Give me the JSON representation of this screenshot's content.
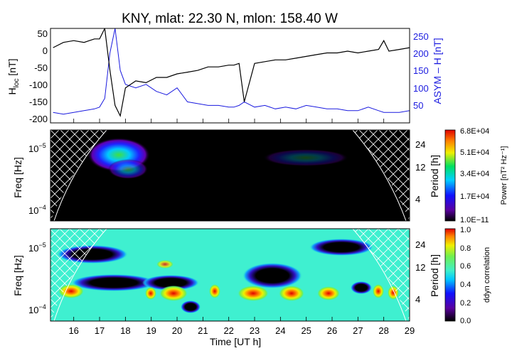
{
  "figure": {
    "title": "KNY, mlat:   22.30 N, mlon:  158.40 W",
    "x_axis_label": "Time [UT h]",
    "x_tick_labels": [
      "16",
      "17",
      "18",
      "19",
      "20",
      "21",
      "22",
      "23",
      "24",
      "25",
      "26",
      "27",
      "28",
      "29"
    ]
  },
  "panel1": {
    "left_label": "H",
    "left_label_sub": "loc",
    "left_label_unit": " [nT]",
    "right_label": "ASYM – H [nT]",
    "left_ticks": [
      "50",
      "0",
      "-50",
      "-100",
      "-150",
      "-200"
    ],
    "right_ticks": [
      "250",
      "200",
      "150",
      "100",
      "50"
    ]
  },
  "panel2": {
    "ylabel": "Freq [Hz]",
    "y_ticks_base": [
      "10",
      "10"
    ],
    "y_ticks_exp": [
      "−5",
      "−4"
    ],
    "period_label": "Period [h]",
    "period_ticks": [
      "24",
      "12",
      "4"
    ],
    "colorbar_label": "Power [nT² Hz⁻¹]",
    "colorbar_ticks": [
      "6.8E+04",
      "5.1E+04",
      "3.4E+04",
      "1.7E+04",
      "1.0E−11"
    ]
  },
  "panel3": {
    "ylabel": "Freq [Hz]",
    "y_ticks_base": [
      "10",
      "10"
    ],
    "y_ticks_exp": [
      "−5",
      "−4"
    ],
    "period_label": "Period [h]",
    "period_ticks": [
      "24",
      "12",
      "4"
    ],
    "colorbar_label": "ddyn correlation",
    "colorbar_ticks": [
      "1.0",
      "0.8",
      "0.6",
      "0.4",
      "0.2",
      "0.0"
    ]
  },
  "colors": {
    "hloc_line": "#000000",
    "asym_line": "#1a1adf",
    "power_background": "#000000",
    "correlation_background": "#3ff0d0"
  },
  "chart_data": [
    {
      "type": "line",
      "x": [
        15.2,
        15.6,
        16.0,
        16.4,
        16.8,
        17.0,
        17.2,
        17.4,
        17.6,
        17.8,
        18.0,
        18.4,
        18.8,
        19.2,
        19.6,
        20.0,
        20.4,
        20.8,
        21.2,
        21.6,
        22.0,
        22.2,
        22.4,
        22.6,
        23.0,
        23.4,
        23.8,
        24.2,
        24.6,
        25.0,
        25.4,
        25.8,
        26.2,
        26.6,
        27.0,
        27.4,
        27.8,
        28.0,
        28.2,
        28.6,
        29.0
      ],
      "series": [
        {
          "name": "H",
          "values": [
            5,
            20,
            25,
            20,
            30,
            30,
            60,
            -60,
            -160,
            -190,
            -110,
            -90,
            -95,
            -80,
            -80,
            -70,
            -65,
            -60,
            -50,
            -50,
            -45,
            -45,
            -40,
            -150,
            -40,
            -35,
            -30,
            -30,
            -25,
            -20,
            -15,
            -10,
            -10,
            -5,
            -10,
            -5,
            0,
            25,
            -5,
            0,
            5
          ]
        },
        {
          "name": "ASYM – H",
          "values": [
            30,
            25,
            30,
            35,
            40,
            45,
            70,
            200,
            270,
            150,
            110,
            100,
            110,
            90,
            80,
            100,
            60,
            55,
            50,
            50,
            45,
            45,
            50,
            60,
            45,
            50,
            40,
            45,
            40,
            50,
            45,
            40,
            40,
            35,
            35,
            45,
            35,
            30,
            30,
            30,
            35
          ]
        }
      ],
      "xlim": [
        15.1,
        29.0
      ],
      "ylim": [
        -210,
        60
      ],
      "ylim_right": [
        0,
        270
      ]
    },
    {
      "type": "heatmap",
      "z_name": "Power",
      "xlim": [
        15.1,
        29.0
      ],
      "period_ticks_h": [
        24,
        12,
        4
      ],
      "colorbar_range": [
        1e-11,
        68000.0
      ],
      "peaks": [
        {
          "time_h": 17.9,
          "period_h": 18,
          "value": 60000.0
        },
        {
          "time_h": 18.4,
          "period_h": 9,
          "value": 15000.0
        },
        {
          "time_h": 25.2,
          "period_h": 16,
          "value": 5000.0
        }
      ]
    },
    {
      "type": "heatmap",
      "z_name": "ddyn correlation",
      "xlim": [
        15.1,
        29.0
      ],
      "period_ticks_h": [
        24,
        12,
        4
      ],
      "colorbar_range": [
        0.0,
        1.0
      ],
      "peaks": [
        {
          "time_h": 17.0,
          "period_h": 3,
          "value": 1.0
        },
        {
          "time_h": 20.5,
          "period_h": 3,
          "value": 1.0
        },
        {
          "time_h": 23.7,
          "period_h": 3,
          "value": 1.0
        },
        {
          "time_h": 25.1,
          "period_h": 3,
          "value": 0.8
        },
        {
          "time_h": 17.0,
          "period_h": 24,
          "value": 0.0
        },
        {
          "time_h": 19.0,
          "period_h": 8,
          "value": 0.0
        },
        {
          "time_h": 26.5,
          "period_h": 26,
          "value": 0.0
        }
      ]
    }
  ]
}
